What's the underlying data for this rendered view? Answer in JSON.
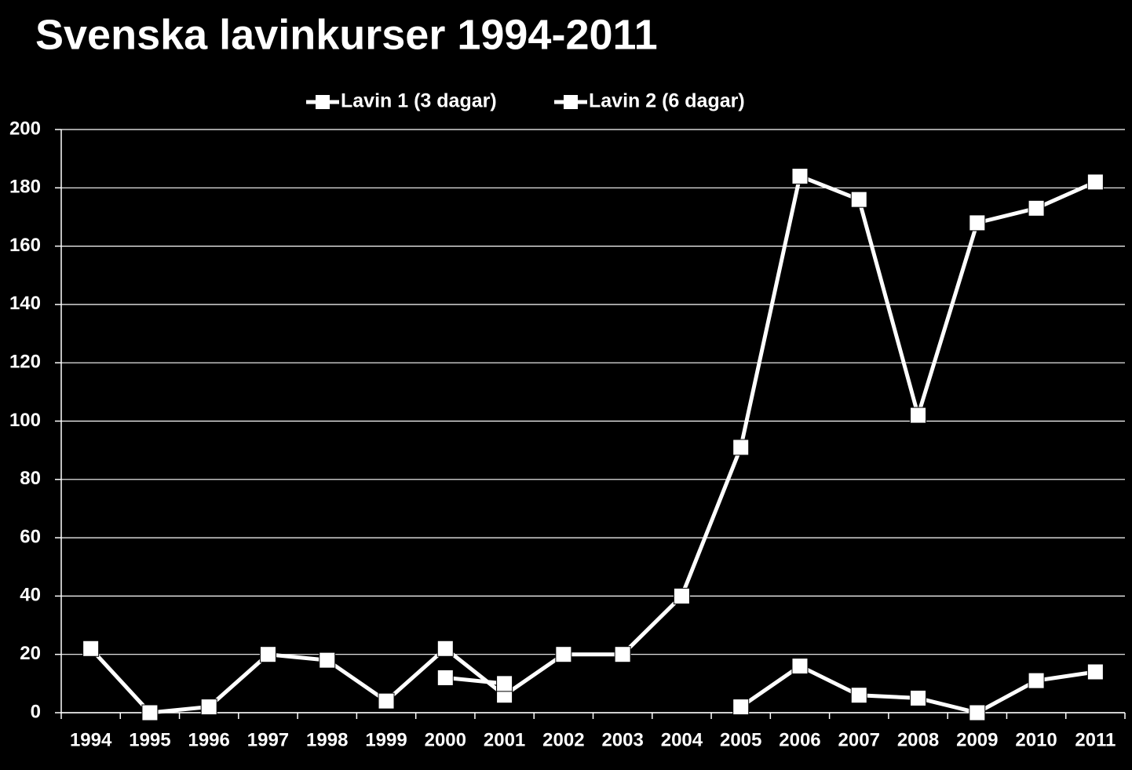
{
  "chart_data": {
    "type": "line",
    "title": "Svenska lavinkurser 1994-2011",
    "categories": [
      "1994",
      "1995",
      "1996",
      "1997",
      "1998",
      "1999",
      "2000",
      "2001",
      "2002",
      "2003",
      "2004",
      "2005",
      "2006",
      "2007",
      "2008",
      "2009",
      "2010",
      "2011"
    ],
    "series": [
      {
        "name": "Lavin 1 (3 dagar)",
        "color": "#ffffff",
        "values": [
          22,
          0,
          2,
          20,
          18,
          4,
          22,
          6,
          20,
          20,
          40,
          91,
          184,
          176,
          102,
          168,
          173,
          182
        ]
      },
      {
        "name": "Lavin 2 (6 dagar)",
        "color": "#ffffff",
        "values": [
          null,
          null,
          null,
          null,
          null,
          null,
          12,
          10,
          null,
          null,
          null,
          2,
          16,
          6,
          5,
          0,
          11,
          14
        ]
      }
    ],
    "ylim": [
      0,
      200
    ],
    "yticks": [
      0,
      20,
      40,
      60,
      80,
      100,
      120,
      140,
      160,
      180,
      200
    ],
    "grid": true,
    "legend": "top"
  }
}
